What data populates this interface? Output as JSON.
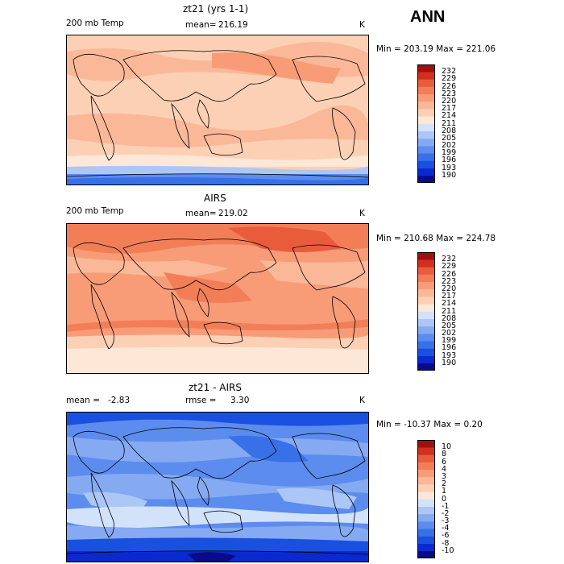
{
  "season": "ANN",
  "colors": {
    "temp_scale": [
      "#0a0a8a",
      "#0a2ad0",
      "#1a50e0",
      "#3870e8",
      "#5c8cee",
      "#85aaf2",
      "#acc6f6",
      "#d2e2fa",
      "#fde8d8",
      "#fcd0b4",
      "#fab898",
      "#f89c78",
      "#f27e58",
      "#e85c3c",
      "#d03020",
      "#a01010"
    ],
    "diff_scale": [
      "#0a0a8a",
      "#0a2ad0",
      "#1a50e0",
      "#3870e8",
      "#5c8cee",
      "#85aaf2",
      "#acc6f6",
      "#d2e2fa",
      "#fde8d8",
      "#fcd0b4",
      "#fab898",
      "#f89c78",
      "#f27e58",
      "#e85c3c",
      "#d03020",
      "#a01010"
    ]
  },
  "chart_data": [
    {
      "type": "heatmap",
      "title": "zt21 (yrs 1-1)",
      "variable": "200 mb Temp",
      "stat_label": "mean=",
      "stat_value": "216.19",
      "units": "K",
      "range_text": "Min = 203.19 Max = 221.06",
      "min": 203.19,
      "max": 221.06,
      "colorbar_levels": [
        "232",
        "229",
        "226",
        "223",
        "220",
        "217",
        "214",
        "211",
        "208",
        "205",
        "202",
        "199",
        "196",
        "193",
        "190"
      ]
    },
    {
      "type": "heatmap",
      "title": "AIRS",
      "variable": "200 mb Temp",
      "stat_label": "mean=",
      "stat_value": "219.02",
      "units": "K",
      "range_text": "Min = 210.68 Max = 224.78",
      "min": 210.68,
      "max": 224.78,
      "colorbar_levels": [
        "232",
        "229",
        "226",
        "223",
        "220",
        "217",
        "214",
        "211",
        "208",
        "205",
        "202",
        "199",
        "196",
        "193",
        "190"
      ]
    },
    {
      "type": "heatmap",
      "title": "zt21 - AIRS",
      "stat_label": "mean =",
      "stat_value": "-2.83",
      "rmse_label": "rmse =",
      "rmse_value": "3.30",
      "units": "K",
      "range_text": "Min = -10.37 Max =   0.20",
      "min": -10.37,
      "max": 0.2,
      "colorbar_levels": [
        "10",
        "8",
        "6",
        "4",
        "3",
        "2",
        "1",
        "0",
        "-1",
        "-2",
        "-3",
        "-4",
        "-6",
        "-8",
        "-10"
      ]
    }
  ]
}
